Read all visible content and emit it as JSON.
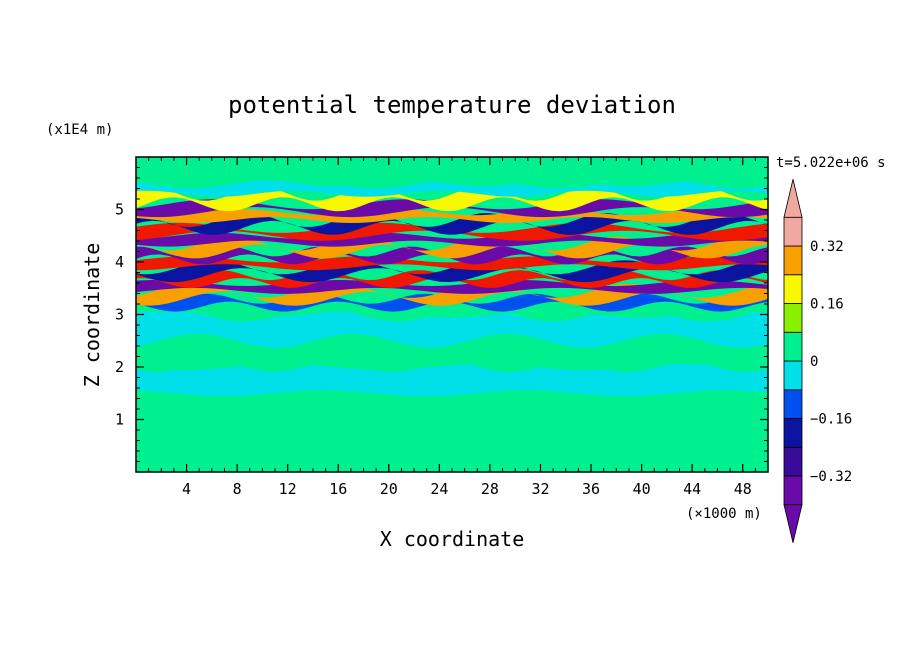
{
  "chart_data": {
    "type": "heatmap",
    "title": "potential temperature deviation",
    "xlabel": "X coordinate",
    "ylabel": "Z coordinate",
    "x_unit_label": "(×1000 m)",
    "y_unit_label": "(x1E4 m)",
    "time_label": "t=5.022e+06 s",
    "xlim": [
      0,
      50
    ],
    "ylim": [
      0,
      6
    ],
    "xticks": [
      "4",
      "8",
      "12",
      "16",
      "20",
      "24",
      "28",
      "32",
      "36",
      "40",
      "44",
      "48"
    ],
    "yticks": [
      "1",
      "2",
      "3",
      "4",
      "5"
    ],
    "colorbar": {
      "levels": [
        -0.4,
        -0.32,
        -0.24,
        -0.16,
        -0.08,
        0,
        0.08,
        0.16,
        0.24,
        0.32,
        0.4
      ],
      "tick_labels": [
        "0.32",
        "0.16",
        "0",
        "−0.16",
        "−0.32"
      ],
      "tick_values": [
        0.32,
        0.16,
        0,
        -0.16,
        -0.32
      ],
      "colors": [
        "#6a0aa8",
        "#3a0a9a",
        "#0a14a0",
        "#0050f0",
        "#00e0e8",
        "#00f090",
        "#88f000",
        "#f8f800",
        "#f8a000",
        "#f01800",
        "#f0a8a0"
      ]
    },
    "bands": [
      {
        "z": 0.0,
        "value": 0.04
      },
      {
        "z": 0.5,
        "value": 0.0
      },
      {
        "z": 1.0,
        "value": 0.02
      },
      {
        "z": 1.5,
        "value": -0.02
      },
      {
        "z": 2.0,
        "value": 0.03
      },
      {
        "z": 2.5,
        "value": -0.03
      },
      {
        "z": 3.0,
        "value": 0.0
      },
      {
        "z": 3.15,
        "value": -0.1
      },
      {
        "z": 3.3,
        "value": 0.3
      },
      {
        "z": 3.45,
        "value": -0.35
      },
      {
        "z": 3.6,
        "value": 0.38
      },
      {
        "z": 3.75,
        "value": -0.2
      },
      {
        "z": 3.9,
        "value": 0.38
      },
      {
        "z": 4.05,
        "value": -0.38
      },
      {
        "z": 4.2,
        "value": 0.3
      },
      {
        "z": 4.35,
        "value": -0.35
      },
      {
        "z": 4.5,
        "value": 0.38
      },
      {
        "z": 4.65,
        "value": -0.2
      },
      {
        "z": 4.8,
        "value": 0.3
      },
      {
        "z": 4.95,
        "value": -0.38
      },
      {
        "z": 5.1,
        "value": 0.2
      },
      {
        "z": 5.3,
        "value": -0.05
      },
      {
        "z": 5.5,
        "value": 0.04
      },
      {
        "z": 5.75,
        "value": 0.02
      }
    ]
  }
}
